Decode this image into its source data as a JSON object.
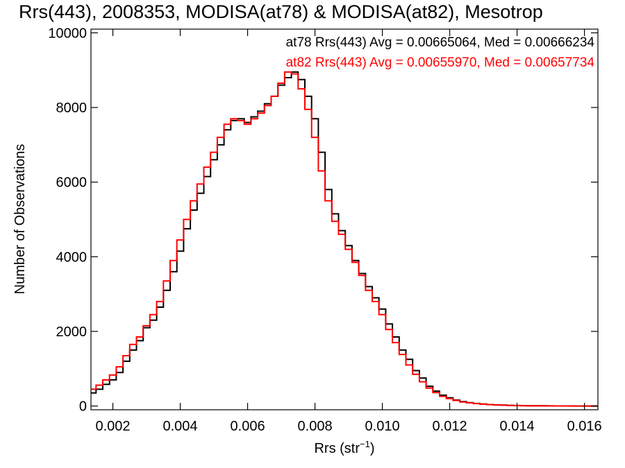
{
  "chart_data": {
    "type": "line",
    "title": "Rrs(443), 2008353, MODISA(at78) & MODISA(at82), Mesotrop",
    "xlabel_main": "Rrs (str",
    "xlabel_sup": "−1",
    "xlabel_close": ")",
    "ylabel": "Number of Observations",
    "xlim": [
      0.00135,
      0.0164
    ],
    "ylim": [
      -100,
      10100
    ],
    "x_ticks": [
      0.002,
      0.004,
      0.006,
      0.008,
      0.01,
      0.012,
      0.014,
      0.016
    ],
    "x_tick_labels": [
      "0.002",
      "0.004",
      "0.006",
      "0.008",
      "0.010",
      "0.012",
      "0.014",
      "0.016"
    ],
    "y_ticks": [
      0,
      2000,
      4000,
      6000,
      8000,
      10000
    ],
    "y_tick_labels": [
      "0",
      "2000",
      "4000",
      "6000",
      "8000",
      "10000"
    ],
    "grid": false,
    "legend_position": "top-right",
    "series": [
      {
        "name": "at78",
        "color": "#000000",
        "label": "at78 Rrs(443) Avg = 0.00665064, Med = 0.00666234",
        "x": [
          0.00135,
          0.0015,
          0.0017,
          0.0019,
          0.0021,
          0.0023,
          0.0025,
          0.0027,
          0.0029,
          0.0031,
          0.0033,
          0.0035,
          0.0037,
          0.0039,
          0.0041,
          0.0043,
          0.0045,
          0.0047,
          0.0049,
          0.0051,
          0.0053,
          0.0055,
          0.0057,
          0.0059,
          0.0061,
          0.0063,
          0.0065,
          0.0067,
          0.0069,
          0.0071,
          0.0073,
          0.0075,
          0.0077,
          0.0079,
          0.0081,
          0.0083,
          0.0085,
          0.0087,
          0.0089,
          0.0091,
          0.0093,
          0.0095,
          0.0097,
          0.0099,
          0.0101,
          0.0103,
          0.0105,
          0.0107,
          0.0109,
          0.0111,
          0.0113,
          0.0115,
          0.0117,
          0.0119,
          0.0121,
          0.0123,
          0.0125,
          0.0127,
          0.0129,
          0.0131,
          0.0133,
          0.0135,
          0.0137,
          0.0139,
          0.0141,
          0.0143,
          0.0145,
          0.0147,
          0.0149,
          0.0151,
          0.0153,
          0.0155,
          0.0157,
          0.0159,
          0.0161,
          0.0163
        ],
        "y": [
          350,
          450,
          580,
          700,
          900,
          1200,
          1500,
          1750,
          2100,
          2300,
          2650,
          3100,
          3600,
          4150,
          4750,
          5250,
          5700,
          6150,
          6600,
          7000,
          7400,
          7650,
          7700,
          7600,
          7750,
          7900,
          8100,
          8300,
          8600,
          8800,
          8950,
          8750,
          8300,
          7700,
          6800,
          5800,
          5150,
          4700,
          4300,
          3900,
          3550,
          3200,
          2900,
          2600,
          2200,
          1850,
          1500,
          1250,
          950,
          750,
          530,
          400,
          290,
          220,
          160,
          120,
          90,
          70,
          55,
          40,
          30,
          25,
          18,
          14,
          10,
          8,
          6,
          5,
          4,
          3,
          2,
          2,
          1,
          1,
          0,
          0
        ]
      },
      {
        "name": "at82",
        "color": "#ff0000",
        "label": "at82 Rrs(443) Avg = 0.00655970, Med = 0.00657734",
        "x": [
          0.00135,
          0.0015,
          0.0017,
          0.0019,
          0.0021,
          0.0023,
          0.0025,
          0.0027,
          0.0029,
          0.0031,
          0.0033,
          0.0035,
          0.0037,
          0.0039,
          0.0041,
          0.0043,
          0.0045,
          0.0047,
          0.0049,
          0.0051,
          0.0053,
          0.0055,
          0.0057,
          0.0059,
          0.0061,
          0.0063,
          0.0065,
          0.0067,
          0.0069,
          0.0071,
          0.0073,
          0.0075,
          0.0077,
          0.0079,
          0.0081,
          0.0083,
          0.0085,
          0.0087,
          0.0089,
          0.0091,
          0.0093,
          0.0095,
          0.0097,
          0.0099,
          0.0101,
          0.0103,
          0.0105,
          0.0107,
          0.0109,
          0.0111,
          0.0113,
          0.0115,
          0.0117,
          0.0119,
          0.0121,
          0.0123,
          0.0125,
          0.0127,
          0.0129,
          0.0131,
          0.0133,
          0.0135,
          0.0137,
          0.0139,
          0.0141,
          0.0143,
          0.0145,
          0.0147,
          0.0149,
          0.0151,
          0.0153,
          0.0155,
          0.0157,
          0.0159,
          0.0161,
          0.0163
        ],
        "y": [
          450,
          560,
          700,
          830,
          1050,
          1350,
          1650,
          1850,
          2150,
          2450,
          2800,
          3350,
          3900,
          4450,
          5000,
          5500,
          5950,
          6400,
          6800,
          7200,
          7550,
          7700,
          7650,
          7550,
          7700,
          7850,
          8050,
          8300,
          8650,
          8950,
          8900,
          8500,
          7950,
          7200,
          6300,
          5500,
          4950,
          4600,
          4200,
          3850,
          3500,
          3100,
          2800,
          2450,
          2050,
          1700,
          1380,
          1100,
          850,
          650,
          480,
          360,
          260,
          200,
          150,
          110,
          85,
          65,
          50,
          38,
          28,
          22,
          16,
          12,
          9,
          7,
          5,
          4,
          3,
          2,
          2,
          1,
          1,
          1,
          0,
          0
        ]
      }
    ]
  }
}
